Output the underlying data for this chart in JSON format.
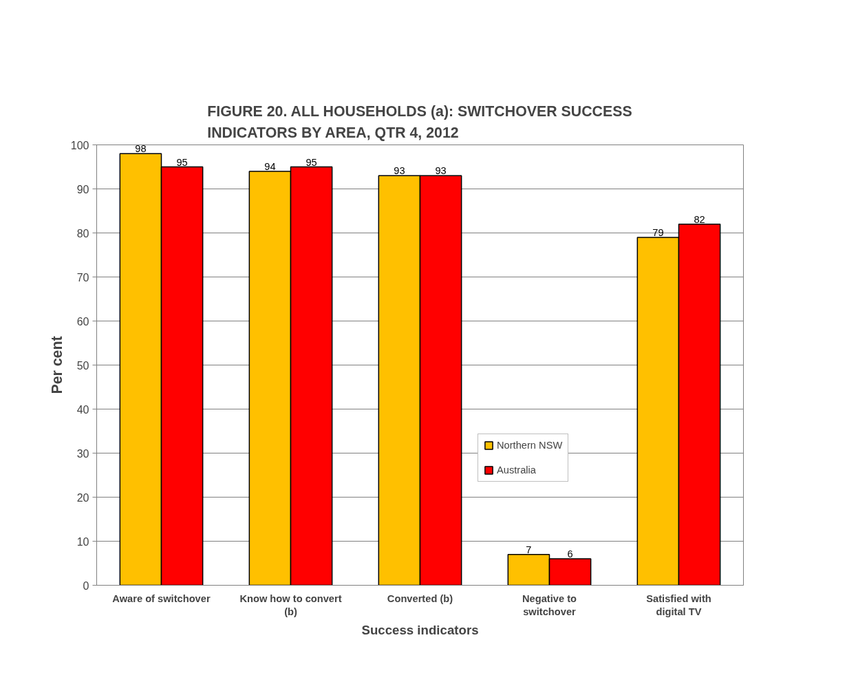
{
  "chart_data": {
    "type": "bar",
    "title": "FIGURE 20. ALL HOUSEHOLDS (a): SWITCHOVER SUCCESS INDICATORS BY AREA, QTR 4, 2012",
    "xlabel": "Success indicators",
    "ylabel": "Per cent",
    "categories": [
      "Aware of switchover",
      "Know how to convert (b)",
      "Converted (b)",
      "Negative to switchover",
      "Satisfied with digital TV"
    ],
    "series": [
      {
        "name": "Northern NSW",
        "color": "#ffc000",
        "values": [
          98,
          94,
          93,
          7,
          79
        ]
      },
      {
        "name": "Australia",
        "color": "#ff0000",
        "values": [
          95,
          95,
          93,
          6,
          82
        ]
      }
    ],
    "ylim": [
      0,
      100
    ],
    "yticks": [
      0,
      10,
      20,
      30,
      40,
      50,
      60,
      70,
      80,
      90,
      100
    ],
    "grid": "y",
    "legend": "right",
    "data_labels": true
  }
}
